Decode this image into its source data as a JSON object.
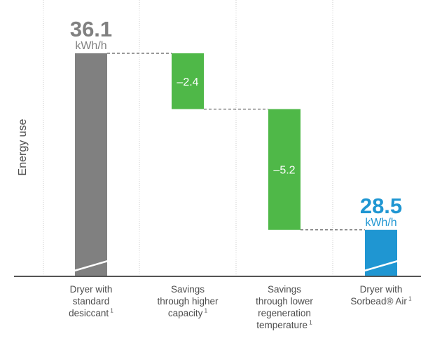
{
  "chart_data": {
    "type": "waterfall",
    "ylabel": "Energy use",
    "categories": [
      {
        "lines": [
          "Dryer with",
          "standard",
          "desiccant"
        ],
        "footnote": "1"
      },
      {
        "lines": [
          "Savings",
          "through higher",
          "capacity"
        ],
        "footnote": "1"
      },
      {
        "lines": [
          "Savings",
          "through lower",
          "regeneration",
          "temperature"
        ],
        "footnote": "1"
      },
      {
        "lines": [
          "Dryer with",
          "Sorbead® Air"
        ],
        "footnote": "1"
      }
    ],
    "steps": [
      {
        "kind": "total",
        "value": 36.1,
        "label": "36.1",
        "unit": "kWh/h",
        "color": "#808080",
        "label_color": "#808080"
      },
      {
        "kind": "delta",
        "value": -2.4,
        "label": "–2.4",
        "color": "#4fb848"
      },
      {
        "kind": "delta",
        "value": -5.2,
        "label": "–5.2",
        "color": "#4fb848"
      },
      {
        "kind": "total",
        "value": 28.5,
        "label": "28.5",
        "unit": "kWh/h",
        "color": "#1f96d2",
        "label_color": "#1f96d2"
      }
    ],
    "axis_break": true,
    "grid": "vertical dotted separators"
  }
}
